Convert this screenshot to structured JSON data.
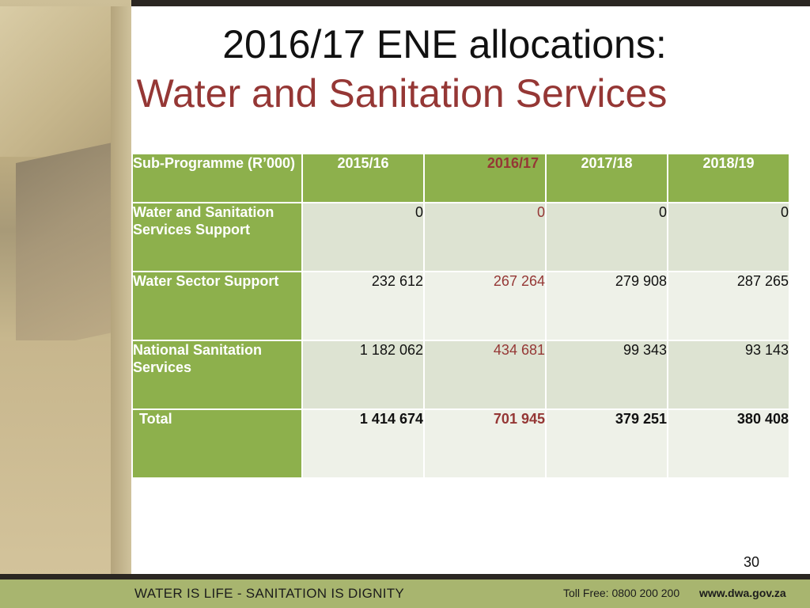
{
  "slide": {
    "title_line1": "2016/17 ENE allocations:",
    "title_line2": "Water and Sanitation Services",
    "page_number": "30"
  },
  "table": {
    "header": {
      "sub_programme": "Sub-Programme (R’000)",
      "years": [
        "2015/16",
        "2016/17",
        "2017/18",
        "2018/19"
      ]
    },
    "rows": [
      {
        "label": "Water and Sanitation Services Support",
        "values": [
          "0",
          "0",
          "0",
          "0"
        ]
      },
      {
        "label": "Water Sector Support",
        "values": [
          "232 612",
          "267 264",
          "279 908",
          "287 265"
        ]
      },
      {
        "label": "National Sanitation Services",
        "values": [
          "1 182 062",
          "434 681",
          "99 343",
          "93 143"
        ]
      },
      {
        "label": "Total",
        "values": [
          "1 414 674",
          "701 945",
          "379 251",
          "380 408"
        ]
      }
    ]
  },
  "footer": {
    "slogan": "WATER IS LIFE - SANITATION IS DIGNITY",
    "toll_free": "Toll Free: 0800 200 200",
    "website": "www.dwa.gov.za"
  },
  "colors": {
    "header_green": "#8db04c",
    "highlight_red": "#953735",
    "footer_green": "#a8b56f"
  }
}
